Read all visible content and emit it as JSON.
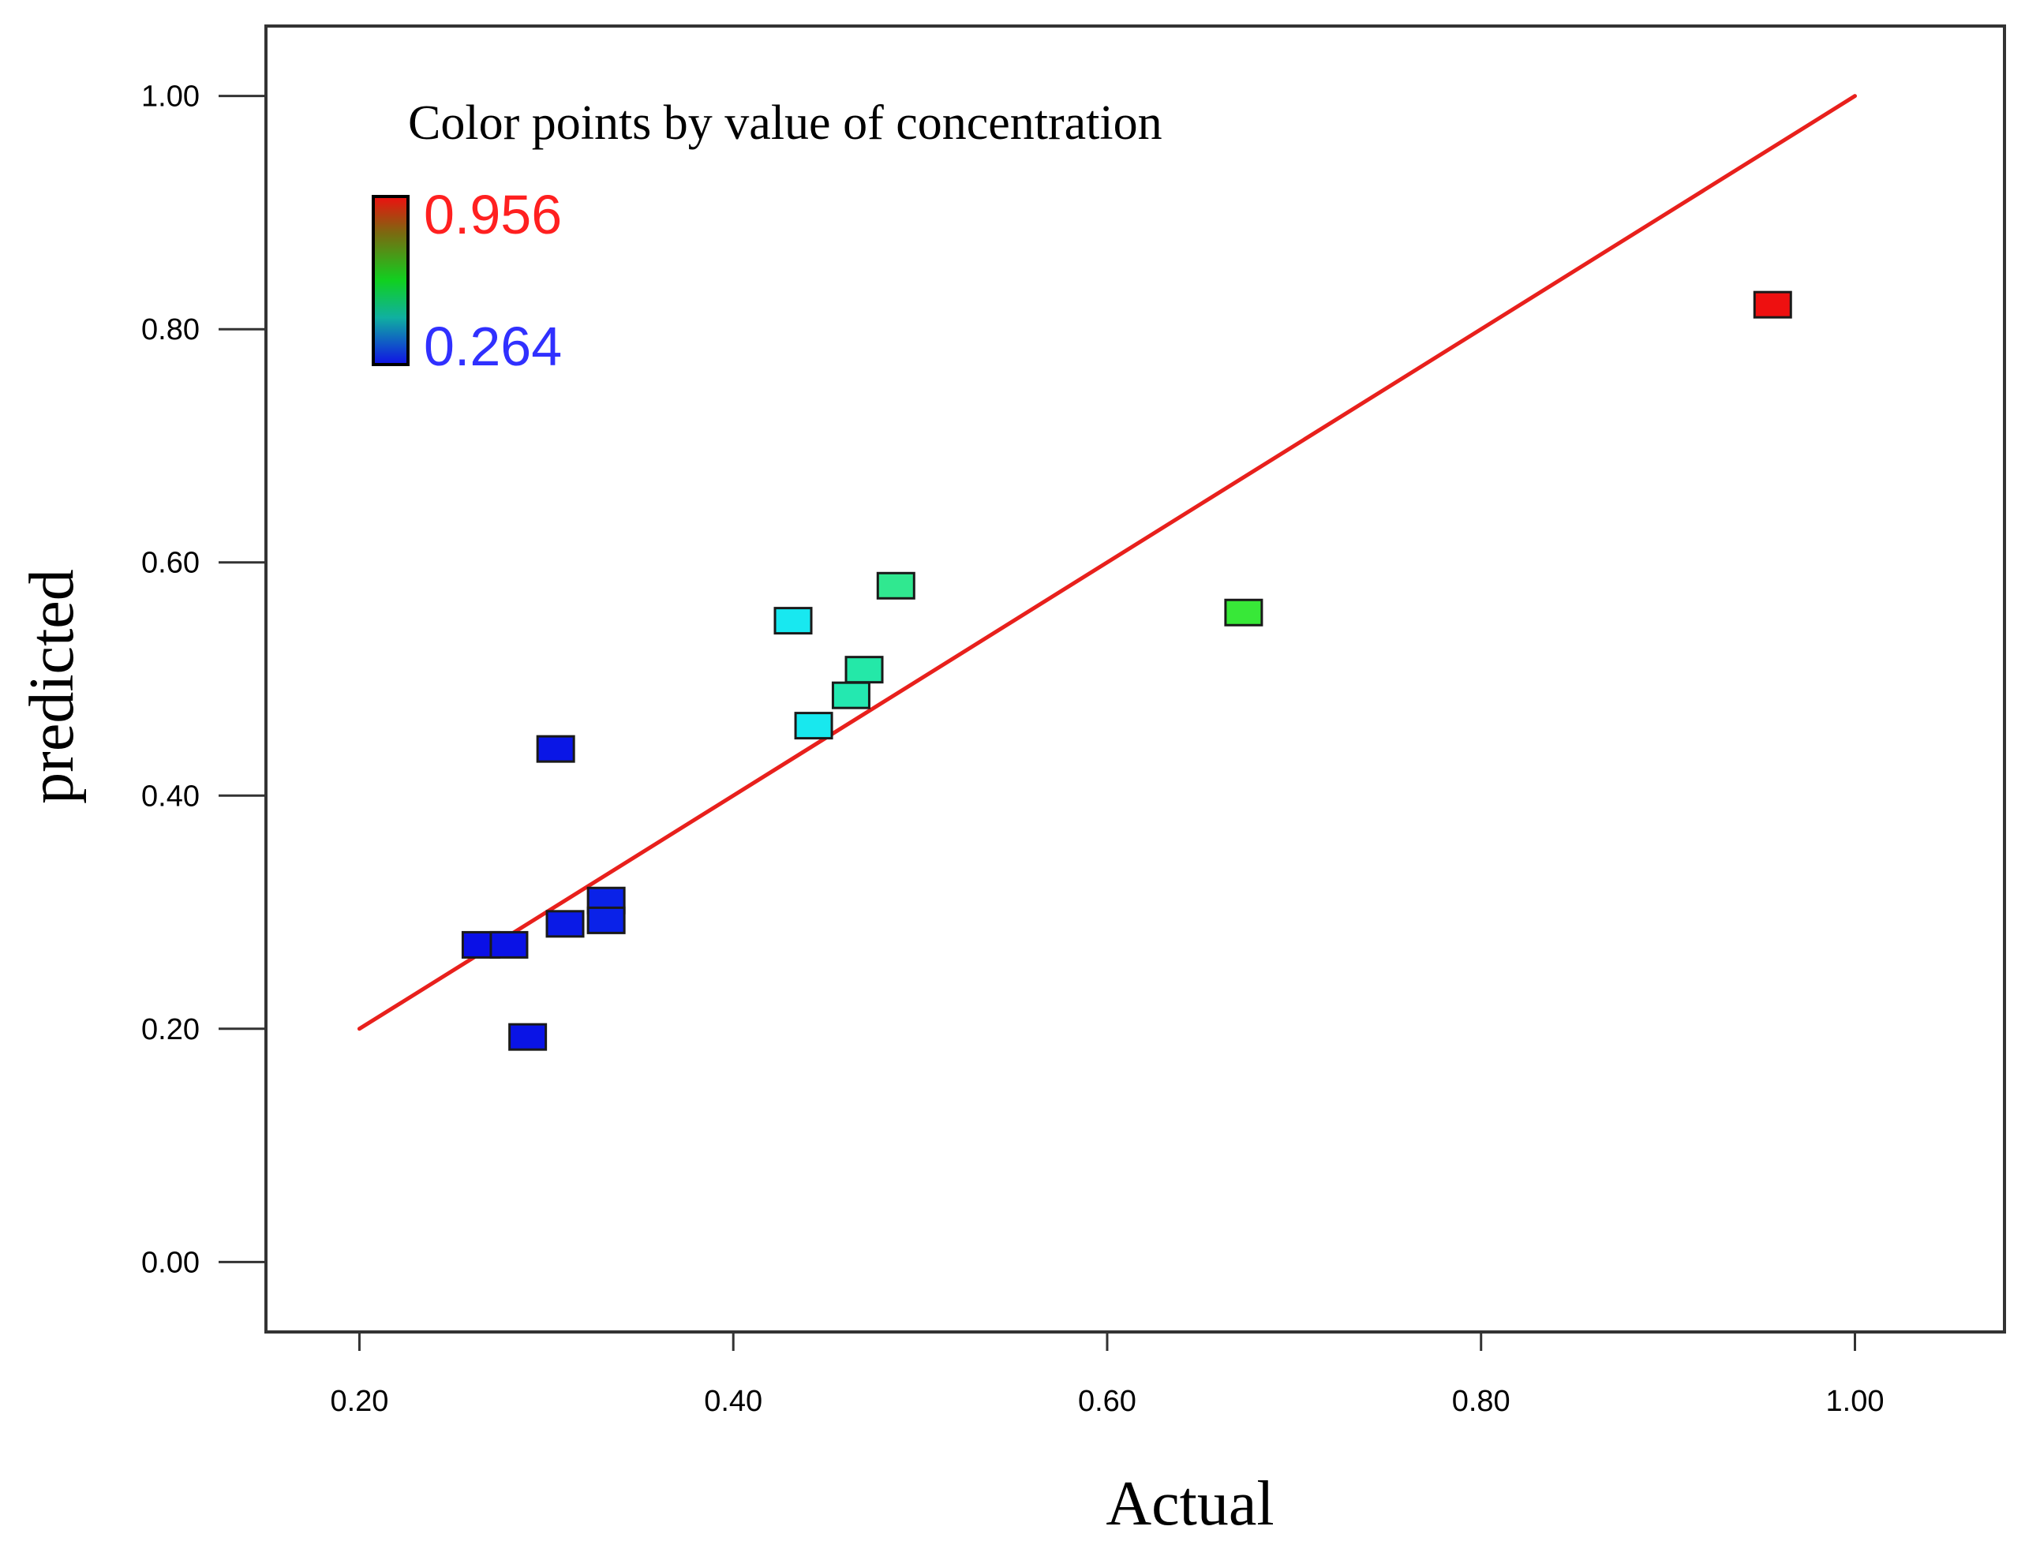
{
  "chart_data": {
    "type": "scatter",
    "title": "",
    "xlabel": "Actual",
    "ylabel": "predicted",
    "xlim": [
      0.15,
      1.08
    ],
    "ylim": [
      -0.06,
      1.06
    ],
    "xticks": [
      "0.20",
      "0.40",
      "0.60",
      "0.80",
      "1.00"
    ],
    "xtick_values": [
      0.2,
      0.4,
      0.6,
      0.8,
      1.0
    ],
    "yticks": [
      "0.00",
      "0.20",
      "0.40",
      "0.60",
      "0.80",
      "1.00"
    ],
    "ytick_values": [
      0.0,
      0.2,
      0.4,
      0.6,
      0.8,
      1.0
    ],
    "grid": false,
    "reference_line": {
      "x": [
        0.2,
        1.0
      ],
      "y": [
        0.2,
        1.0
      ],
      "color": "#e8201c"
    },
    "legend": {
      "title": "Color points by value of concentration",
      "max_label": "0.956",
      "min_label": "0.264",
      "max_color": "#ff2020",
      "min_color": "#3030ff",
      "placement": "top-left"
    },
    "marker": "square",
    "points": [
      {
        "x": 0.265,
        "y": 0.272,
        "color": "#0a10e6"
      },
      {
        "x": 0.28,
        "y": 0.272,
        "color": "#0a12e6"
      },
      {
        "x": 0.29,
        "y": 0.193,
        "color": "#0a14e6"
      },
      {
        "x": 0.305,
        "y": 0.44,
        "color": "#0a16e6"
      },
      {
        "x": 0.31,
        "y": 0.29,
        "color": "#0a1ae6"
      },
      {
        "x": 0.332,
        "y": 0.31,
        "color": "#0a22e8"
      },
      {
        "x": 0.332,
        "y": 0.293,
        "color": "#0a22e8"
      },
      {
        "x": 0.432,
        "y": 0.55,
        "color": "#18e8f0"
      },
      {
        "x": 0.443,
        "y": 0.46,
        "color": "#18e8ee"
      },
      {
        "x": 0.463,
        "y": 0.486,
        "color": "#24e8b0"
      },
      {
        "x": 0.47,
        "y": 0.508,
        "color": "#24e8a8"
      },
      {
        "x": 0.487,
        "y": 0.58,
        "color": "#30e890"
      },
      {
        "x": 0.673,
        "y": 0.557,
        "color": "#38e838"
      },
      {
        "x": 0.956,
        "y": 0.821,
        "color": "#ee1010"
      }
    ]
  }
}
